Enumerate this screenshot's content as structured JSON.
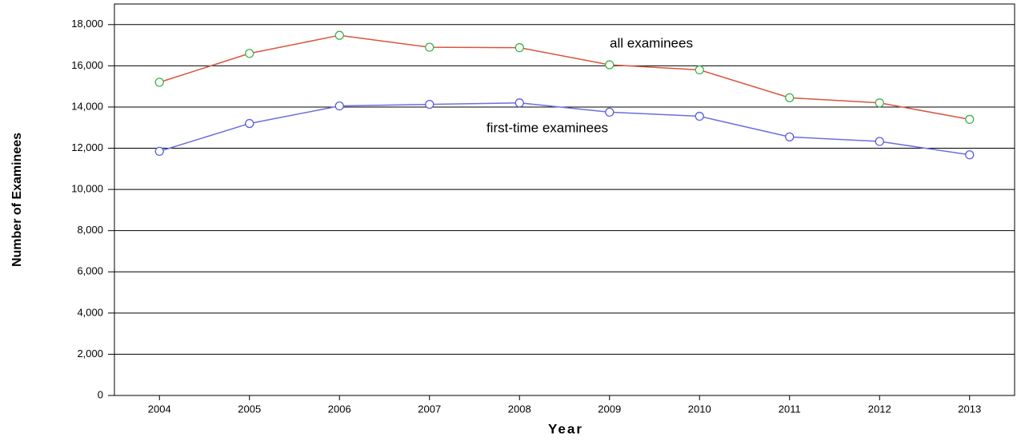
{
  "chart_data": {
    "type": "line",
    "x_label": "Year",
    "y_label": "Number of Examinees",
    "categories": [
      "2004",
      "2005",
      "2006",
      "2007",
      "2008",
      "2009",
      "2010",
      "2011",
      "2012",
      "2013"
    ],
    "series": [
      {
        "name": "all examinees",
        "color": "#d9553b",
        "marker_color": "#3cb44b",
        "values": [
          15200,
          16600,
          17480,
          16900,
          16880,
          16050,
          15800,
          14450,
          14200,
          13400
        ]
      },
      {
        "name": "first-time examinees",
        "color": "#6a6fe0",
        "marker_color": "#5a60d8",
        "values": [
          11850,
          13200,
          14050,
          14130,
          14200,
          13750,
          13550,
          12550,
          12330,
          11680
        ]
      }
    ],
    "ylim": [
      0,
      19000
    ],
    "yticks": [
      0,
      {
        "value": 2000,
        "label": "2,000"
      },
      {
        "value": 4000,
        "label": "4,000"
      },
      {
        "value": 6000,
        "label": "6,000"
      },
      {
        "value": 8000,
        "label": "8,000"
      },
      {
        "value": 10000,
        "label": "10,000"
      },
      {
        "value": 12000,
        "label": "12,000"
      },
      {
        "value": 14000,
        "label": "14,000"
      },
      {
        "value": 16000,
        "label": "16,000"
      },
      {
        "value": 18000,
        "label": "18,000"
      }
    ],
    "grid": true
  }
}
